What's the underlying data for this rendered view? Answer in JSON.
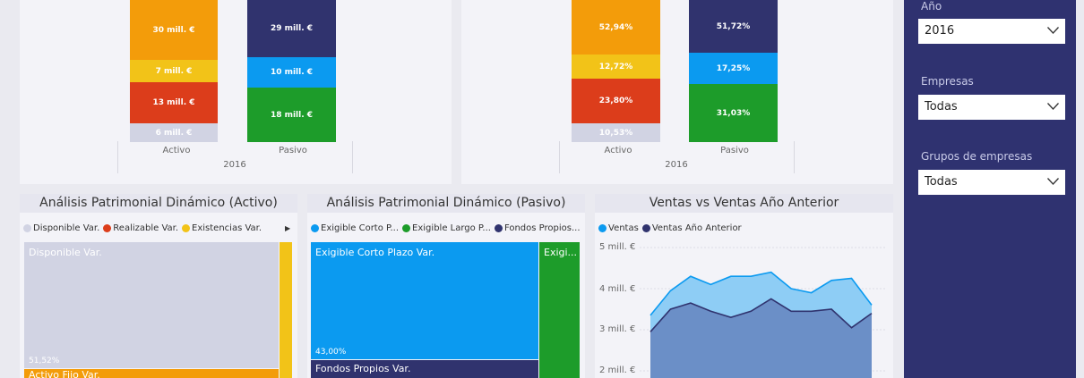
{
  "top_left": {
    "year": "2016",
    "activo": {
      "category": "Activo",
      "segments": [
        {
          "label": "30 mill. €",
          "color": "#f39c0a"
        },
        {
          "label": "7 mill. €",
          "color": "#f2c318"
        },
        {
          "label": "13 mill. €",
          "color": "#dc3d1b"
        },
        {
          "label": "6 mill. €",
          "color": "#d1d3e3"
        }
      ]
    },
    "pasivo": {
      "category": "Pasivo",
      "segments": [
        {
          "label": "29 mill. €",
          "color": "#30336e"
        },
        {
          "label": "10 mill. €",
          "color": "#0b9af0"
        },
        {
          "label": "18 mill. €",
          "color": "#1d9c2a"
        }
      ]
    }
  },
  "top_right": {
    "year": "2016",
    "activo": {
      "category": "Activo",
      "segments": [
        {
          "label": "52,94%",
          "color": "#f39c0a"
        },
        {
          "label": "12,72%",
          "color": "#f2c318"
        },
        {
          "label": "23,80%",
          "color": "#dc3d1b"
        },
        {
          "label": "10,53%",
          "color": "#d1d3e3"
        }
      ]
    },
    "pasivo": {
      "category": "Pasivo",
      "segments": [
        {
          "label": "51,72%",
          "color": "#30336e"
        },
        {
          "label": "17,25%",
          "color": "#0b9af0"
        },
        {
          "label": "31,03%",
          "color": "#1d9c2a"
        }
      ]
    }
  },
  "activo_tree": {
    "title": "Análisis Patrimonial Dinámico (Activo)",
    "legend": [
      {
        "label": "Disponible Var.",
        "color": "#d1d3e3"
      },
      {
        "label": "Realizable Var.",
        "color": "#dc3d1b"
      },
      {
        "label": "Existencias Var.",
        "color": "#f2c318"
      }
    ],
    "legend_more": "▶",
    "tiles": [
      {
        "label": "Disponible Var.",
        "pct": "51,52%",
        "color": "#d1d3e3"
      },
      {
        "label": "Activo Fijo Var.",
        "color": "#f39c0a"
      },
      {
        "label": "",
        "color": "#f2c318"
      }
    ]
  },
  "pasivo_tree": {
    "title": "Análisis Patrimonial Dinámico (Pasivo)",
    "legend": [
      {
        "label": "Exigible Corto P...",
        "color": "#0b9af0"
      },
      {
        "label": "Exigible Largo P...",
        "color": "#1d9c2a"
      },
      {
        "label": "Fondos Propios...",
        "color": "#30336e"
      }
    ],
    "tiles": [
      {
        "label": "Exigible Corto Plazo Var.",
        "pct": "43,00%",
        "color": "#0b9af0"
      },
      {
        "label": "Exigi...",
        "color": "#1d9c2a"
      },
      {
        "label": "Fondos Propios Var.",
        "color": "#30336e"
      }
    ]
  },
  "chart_data": {
    "type": "area",
    "title": "Ventas vs Ventas Año Anterior",
    "y_ticks": [
      "5 mill. €",
      "4 mill. €",
      "3 mill. €",
      "2 mill. €"
    ],
    "ylim": [
      1.8,
      5.2
    ],
    "series": [
      {
        "name": "Ventas",
        "color": "#8ecdf5",
        "stroke": "#0b9af0",
        "values": [
          3.35,
          3.95,
          4.3,
          4.1,
          4.3,
          4.3,
          4.4,
          4.0,
          3.9,
          4.2,
          4.25,
          3.6
        ]
      },
      {
        "name": "Ventas Año Anterior",
        "color": "#6b8fc7",
        "stroke": "#30336e",
        "values": [
          2.95,
          3.5,
          3.65,
          3.45,
          3.3,
          3.45,
          3.75,
          3.45,
          3.45,
          3.5,
          3.05,
          3.4
        ]
      }
    ]
  },
  "filters": {
    "year_label": "Año",
    "year_value": "2016",
    "empresas_label": "Empresas",
    "empresas_value": "Todas",
    "grupos_label": "Grupos de empresas",
    "grupos_value": "Todas"
  }
}
